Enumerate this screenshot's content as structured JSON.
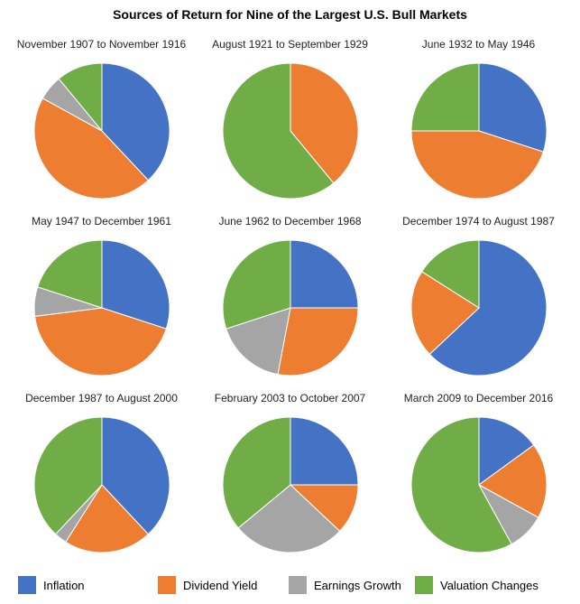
{
  "title": "Sources of Return for Nine of the Largest U.S. Bull Markets",
  "colors": {
    "Inflation": "#4472C4",
    "Dividend Yield": "#ED7D31",
    "Earnings Growth": "#A5A5A5",
    "Valuation Changes": "#70AD47"
  },
  "legend": [
    "Inflation",
    "Dividend Yield",
    "Earnings Growth",
    "Valuation Changes"
  ],
  "chart_data": [
    {
      "type": "pie",
      "title": "November 1907 to November 1916",
      "series": [
        {
          "name": "Inflation",
          "value": 38
        },
        {
          "name": "Dividend Yield",
          "value": 45
        },
        {
          "name": "Earnings Growth",
          "value": 6
        },
        {
          "name": "Valuation Changes",
          "value": 11
        }
      ]
    },
    {
      "type": "pie",
      "title": "August 1921 to September 1929",
      "series": [
        {
          "name": "Inflation",
          "value": 0
        },
        {
          "name": "Dividend Yield",
          "value": 39
        },
        {
          "name": "Earnings Growth",
          "value": 0
        },
        {
          "name": "Valuation Changes",
          "value": 61
        }
      ]
    },
    {
      "type": "pie",
      "title": "June 1932 to May 1946",
      "series": [
        {
          "name": "Inflation",
          "value": 30
        },
        {
          "name": "Dividend Yield",
          "value": 45
        },
        {
          "name": "Earnings Growth",
          "value": 0
        },
        {
          "name": "Valuation Changes",
          "value": 25
        }
      ]
    },
    {
      "type": "pie",
      "title": "May 1947 to December 1961",
      "series": [
        {
          "name": "Inflation",
          "value": 30
        },
        {
          "name": "Dividend Yield",
          "value": 43
        },
        {
          "name": "Earnings Growth",
          "value": 7
        },
        {
          "name": "Valuation Changes",
          "value": 20
        }
      ]
    },
    {
      "type": "pie",
      "title": "June 1962 to December 1968",
      "series": [
        {
          "name": "Inflation",
          "value": 25
        },
        {
          "name": "Dividend Yield",
          "value": 28
        },
        {
          "name": "Earnings Growth",
          "value": 17
        },
        {
          "name": "Valuation Changes",
          "value": 30
        }
      ]
    },
    {
      "type": "pie",
      "title": "December 1974 to August 1987",
      "series": [
        {
          "name": "Inflation",
          "value": 63
        },
        {
          "name": "Dividend Yield",
          "value": 21
        },
        {
          "name": "Earnings Growth",
          "value": 0
        },
        {
          "name": "Valuation Changes",
          "value": 16
        }
      ]
    },
    {
      "type": "pie",
      "title": "December 1987 to August 2000",
      "series": [
        {
          "name": "Inflation",
          "value": 38
        },
        {
          "name": "Dividend Yield",
          "value": 21
        },
        {
          "name": "Earnings Growth",
          "value": 3
        },
        {
          "name": "Valuation Changes",
          "value": 38
        }
      ]
    },
    {
      "type": "pie",
      "title": "February 2003 to October 2007",
      "series": [
        {
          "name": "Inflation",
          "value": 25
        },
        {
          "name": "Dividend Yield",
          "value": 12
        },
        {
          "name": "Earnings Growth",
          "value": 27
        },
        {
          "name": "Valuation Changes",
          "value": 36
        }
      ]
    },
    {
      "type": "pie",
      "title": "March 2009 to December 2016",
      "series": [
        {
          "name": "Inflation",
          "value": 15
        },
        {
          "name": "Dividend Yield",
          "value": 18
        },
        {
          "name": "Earnings Growth",
          "value": 9
        },
        {
          "name": "Valuation Changes",
          "value": 58
        }
      ]
    }
  ]
}
